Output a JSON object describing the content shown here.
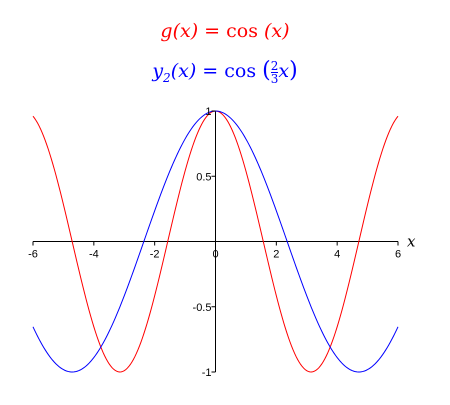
{
  "chart_data": {
    "type": "line",
    "titles": [
      {
        "text": "g(x) = cos (x)",
        "color": "#ff0000"
      },
      {
        "text": "y2(x) = cos (2/3 x)",
        "color": "#0000ff"
      }
    ],
    "xlabel": "x",
    "ylabel": "",
    "xlim": [
      -6,
      6
    ],
    "ylim": [
      -1,
      1
    ],
    "x_ticks": [
      -6,
      -4,
      -2,
      0,
      2,
      4,
      6
    ],
    "x_tick_labels": [
      "-6",
      "-4",
      "-2",
      "0",
      "2",
      "4",
      "6"
    ],
    "y_ticks": [
      -1,
      -0.5,
      0.5,
      1
    ],
    "y_tick_labels": [
      "-1",
      "-0.5",
      "0.5",
      "1"
    ],
    "grid": false,
    "series": [
      {
        "name": "g(x) = cos (x)",
        "color": "#ff0000",
        "x": [
          -6,
          -5.5,
          -5,
          -4.5,
          -4,
          -3.5,
          -3,
          -2.5,
          -2,
          -1.5,
          -1,
          -0.5,
          0,
          0.5,
          1,
          1.5,
          2,
          2.5,
          3,
          3.5,
          4,
          4.5,
          5,
          5.5,
          6
        ],
        "y": [
          0.96,
          0.709,
          0.284,
          -0.211,
          -0.654,
          -0.936,
          -0.99,
          -0.801,
          -0.416,
          0.071,
          0.54,
          0.878,
          1,
          0.878,
          0.54,
          0.071,
          -0.416,
          -0.801,
          -0.99,
          -0.936,
          -0.654,
          -0.211,
          0.284,
          0.709,
          0.96
        ]
      },
      {
        "name": "y2(x) = cos (2/3 x)",
        "color": "#0000ff",
        "x": [
          -6,
          -5.5,
          -5,
          -4.5,
          -4,
          -3.5,
          -3,
          -2.5,
          -2,
          -1.5,
          -1,
          -0.5,
          0,
          0.5,
          1,
          1.5,
          2,
          2.5,
          3,
          3.5,
          4,
          4.5,
          5,
          5.5,
          6
        ],
        "y": [
          -0.654,
          -0.873,
          -0.984,
          -0.99,
          -0.891,
          -0.699,
          -0.416,
          -0.074,
          0.284,
          0.54,
          0.786,
          0.945,
          1,
          0.945,
          0.786,
          0.54,
          0.284,
          -0.074,
          -0.416,
          -0.699,
          -0.891,
          -0.99,
          -0.984,
          -0.873,
          -0.654
        ]
      }
    ]
  }
}
